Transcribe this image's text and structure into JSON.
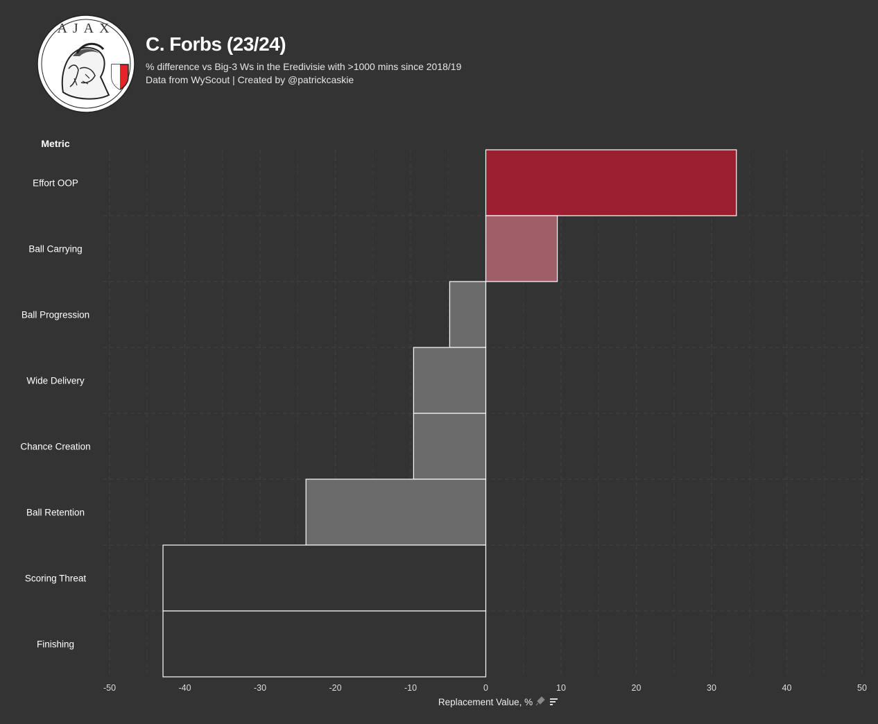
{
  "header": {
    "title": "C. Forbs (23/24)",
    "subtitle_line1": "% difference vs Big-3 Ws in the Eredivisie with >1000 mins since 2018/19",
    "subtitle_line2": "Data from WyScout | Created by @patrickcaskie",
    "logo_name": "AJAX"
  },
  "colors": {
    "background": "#333333",
    "grid": "#3d3d3d",
    "bar_high": "#9b1f31",
    "bar_mid": "#a05e69",
    "bar_neg": "#6b6b6b",
    "bar_low": "#333333",
    "bar_stroke": "#ffffff"
  },
  "chart_data": {
    "type": "bar",
    "orientation": "horizontal",
    "title": "C. Forbs (23/24)",
    "ylabel": "Metric",
    "xlabel": "Replacement Value, %",
    "xlim": [
      -50,
      50
    ],
    "xticks": [
      -50,
      -40,
      -30,
      -20,
      -10,
      0,
      10,
      20,
      30,
      40,
      50
    ],
    "categories": [
      "Effort OOP",
      "Ball Carrying",
      "Ball Progression",
      "Wide Delivery",
      "Chance Creation",
      "Ball Retention",
      "Scoring Threat",
      "Finishing"
    ],
    "values": [
      33.3,
      9.5,
      -4.8,
      -9.6,
      -9.6,
      -23.9,
      -42.9,
      -42.9
    ],
    "fills": [
      "#9b1f31",
      "#a05e69",
      "#6b6b6b",
      "#6b6b6b",
      "#6b6b6b",
      "#6b6b6b",
      "#333333",
      "#333333"
    ],
    "grid": true
  }
}
